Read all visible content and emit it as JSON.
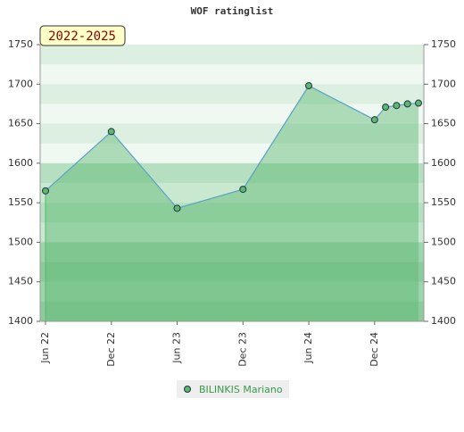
{
  "chart_data": {
    "type": "line",
    "title": "WOF ratinglist",
    "badge": "2022-2025",
    "x": [
      "2022-06",
      "2022-12",
      "2023-06",
      "2023-12",
      "2024-06",
      "2024-12",
      "2025-01",
      "2025-02",
      "2025-03",
      "2025-04"
    ],
    "series": [
      {
        "name": "BILINKIS Mariano",
        "color": "#5aa0c8",
        "marker_color": "#5cb870",
        "values": [
          1565,
          1640,
          1543,
          1567,
          1698,
          1655,
          1671,
          1673,
          1675,
          1676
        ]
      }
    ],
    "xlim": [
      "2022-06",
      "2025-04"
    ],
    "xticks": [
      {
        "value": "2022-06",
        "label": "Jun 22"
      },
      {
        "value": "2022-12",
        "label": "Dec 22"
      },
      {
        "value": "2023-06",
        "label": "Jun 23"
      },
      {
        "value": "2023-12",
        "label": "Dec 23"
      },
      {
        "value": "2024-06",
        "label": "Jun 24"
      },
      {
        "value": "2024-12",
        "label": "Dec 24"
      }
    ],
    "ylim": [
      1400,
      1750
    ],
    "yticks": [
      1400,
      1450,
      1500,
      1550,
      1600,
      1650,
      1700,
      1750
    ],
    "y2lim": [
      1400,
      1750
    ],
    "y2ticks": [
      1400,
      1450,
      1500,
      1550,
      1600,
      1650,
      1700,
      1750
    ]
  }
}
